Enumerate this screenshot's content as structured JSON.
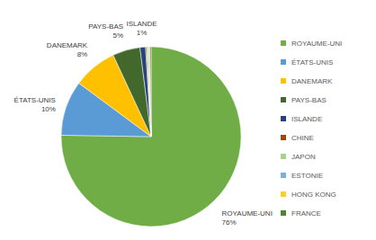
{
  "chart_data": {
    "type": "pie",
    "categories": [
      "ROYAUME-UNI",
      "ÉTATS-UNIS",
      "DANEMARK",
      "PAYS-BAS",
      "ISLANDE",
      "CHINE",
      "JAPON",
      "ESTONIE",
      "HONG KONG",
      "FRANCE"
    ],
    "values": [
      76,
      10,
      8,
      5,
      1,
      0.2,
      0.2,
      0.2,
      0.2,
      0.2
    ],
    "value_labels": [
      "76%",
      "10%",
      "8%",
      "5%",
      "1%",
      null,
      null,
      null,
      null,
      null
    ],
    "colors": [
      "#70ad47",
      "#5b9bd5",
      "#ffc000",
      "#43682b",
      "#264478",
      "#9e480e",
      "#a9d18e",
      "#7cafdd",
      "#ffcd33",
      "#548235"
    ],
    "data_labels": true,
    "legend": "right"
  }
}
